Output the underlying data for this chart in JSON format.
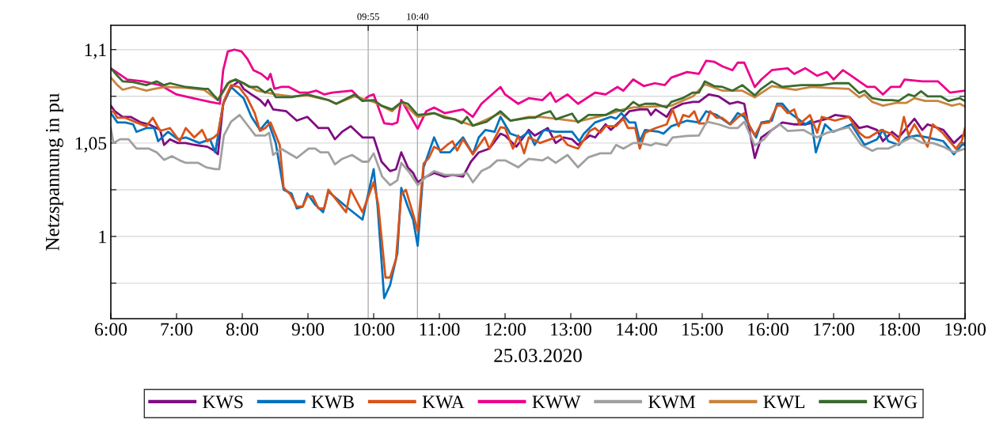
{
  "chart_data": {
    "type": "line",
    "xlabel": "25.03.2020",
    "ylabel": "Netzspannung in pu",
    "xlim": [
      6,
      19
    ],
    "ylim": [
      0.956,
      1.113
    ],
    "xticks": [
      {
        "value": 6,
        "label": "6:00"
      },
      {
        "value": 7,
        "label": "7:00"
      },
      {
        "value": 8,
        "label": "8:00"
      },
      {
        "value": 9,
        "label": "9:00"
      },
      {
        "value": 10,
        "label": "10:00"
      },
      {
        "value": 11,
        "label": "11:00"
      },
      {
        "value": 12,
        "label": "12:00"
      },
      {
        "value": 13,
        "label": "13:00"
      },
      {
        "value": 14,
        "label": "14:00"
      },
      {
        "value": 15,
        "label": "15:00"
      },
      {
        "value": 16,
        "label": "16:00"
      },
      {
        "value": 17,
        "label": "17:00"
      },
      {
        "value": 18,
        "label": "18:00"
      },
      {
        "value": 19,
        "label": "19:00"
      }
    ],
    "yticks": [
      {
        "value": 0.975,
        "label": null
      },
      {
        "value": 1,
        "label": "1"
      },
      {
        "value": 1.025,
        "label": null
      },
      {
        "value": 1.05,
        "label": "1,05"
      },
      {
        "value": 1.075,
        "label": null
      },
      {
        "value": 1.1,
        "label": "1,1"
      }
    ],
    "grid": "y",
    "legend": "bottom",
    "line_style": "solid",
    "marker": "none",
    "x2lim": [
      6,
      19
    ],
    "x2ticks": [
      {
        "value": 9.9167,
        "label": "09:55"
      },
      {
        "value": 10.6667,
        "label": "10:40"
      }
    ],
    "ref_lines": [
      {
        "axis": "x",
        "value": 9.9167,
        "color": "#b0b0b0"
      },
      {
        "axis": "x",
        "value": 10.6667,
        "color": "#b0b0b0"
      }
    ],
    "series": [
      {
        "name": "KWS",
        "color": "#7e0d81",
        "x": [
          6.0,
          6.06,
          6.18,
          6.3,
          6.46,
          6.58,
          6.75,
          6.81,
          6.9,
          7.02,
          7.14,
          7.27,
          7.47,
          7.57,
          7.63,
          7.71,
          7.83,
          7.95,
          8.02,
          8.14,
          8.27,
          8.35,
          8.39,
          8.47,
          8.67,
          8.83,
          8.99,
          9.16,
          9.31,
          9.41,
          9.52,
          9.65,
          9.83,
          10.0,
          10.12,
          10.25,
          10.34,
          10.42,
          10.52,
          10.6,
          10.67,
          10.8,
          10.92,
          11.08,
          11.2,
          11.36,
          11.48,
          11.6,
          11.76,
          11.93,
          12.0,
          12.17,
          12.36,
          12.45,
          12.65,
          12.77,
          12.89,
          13.02,
          13.11,
          13.29,
          13.37,
          13.53,
          13.61,
          13.73,
          13.89,
          14.05,
          14.17,
          14.22,
          14.29,
          14.46,
          14.53,
          14.7,
          14.86,
          14.95,
          15.1,
          15.25,
          15.42,
          15.54,
          15.64,
          15.8,
          15.9,
          16.06,
          16.22,
          16.39,
          16.58,
          16.9,
          17.02,
          17.24,
          17.39,
          17.51,
          17.66,
          17.75,
          17.89,
          17.99,
          18.23,
          18.35,
          18.43,
          18.67,
          18.83,
          18.95,
          19.0
        ],
        "values": [
          1.07,
          1.067,
          1.064,
          1.064,
          1.061,
          1.06,
          1.057,
          1.049,
          1.052,
          1.05,
          1.05,
          1.049,
          1.048,
          1.046,
          1.044,
          1.071,
          1.08,
          1.083,
          1.079,
          1.076,
          1.073,
          1.07,
          1.073,
          1.068,
          1.067,
          1.062,
          1.064,
          1.058,
          1.058,
          1.052,
          1.056,
          1.059,
          1.053,
          1.053,
          1.04,
          1.035,
          1.036,
          1.045,
          1.037,
          1.034,
          1.029,
          1.032,
          1.034,
          1.032,
          1.033,
          1.032,
          1.04,
          1.045,
          1.047,
          1.055,
          1.054,
          1.048,
          1.057,
          1.054,
          1.058,
          1.05,
          1.053,
          1.052,
          1.049,
          1.054,
          1.053,
          1.06,
          1.057,
          1.061,
          1.067,
          1.068,
          1.068,
          1.065,
          1.068,
          1.064,
          1.068,
          1.071,
          1.072,
          1.072,
          1.076,
          1.075,
          1.071,
          1.072,
          1.071,
          1.042,
          1.053,
          1.057,
          1.061,
          1.06,
          1.06,
          1.063,
          1.065,
          1.064,
          1.058,
          1.059,
          1.057,
          1.051,
          1.056,
          1.053,
          1.063,
          1.057,
          1.06,
          1.057,
          1.05,
          1.054,
          1.054
        ]
      },
      {
        "name": "KWB",
        "color": "#0072bd",
        "x": [
          6.0,
          6.1,
          6.22,
          6.34,
          6.39,
          6.54,
          6.66,
          6.72,
          6.87,
          7.02,
          7.14,
          7.35,
          7.51,
          7.59,
          7.71,
          7.83,
          8.02,
          8.14,
          8.27,
          8.39,
          8.51,
          8.63,
          8.75,
          8.83,
          8.92,
          8.99,
          9.11,
          9.23,
          9.31,
          9.58,
          9.83,
          10.0,
          10.06,
          10.16,
          10.25,
          10.36,
          10.42,
          10.52,
          10.6,
          10.67,
          10.76,
          10.92,
          11.02,
          11.16,
          11.36,
          11.51,
          11.6,
          11.7,
          11.84,
          11.93,
          12.08,
          12.24,
          12.36,
          12.45,
          12.57,
          12.6,
          12.77,
          13.02,
          13.13,
          13.2,
          13.37,
          13.61,
          13.69,
          13.77,
          13.89,
          13.98,
          14.05,
          14.13,
          14.34,
          14.41,
          14.53,
          14.77,
          14.95,
          15.06,
          15.22,
          15.42,
          15.54,
          15.64,
          15.82,
          15.9,
          16.06,
          16.14,
          16.22,
          16.34,
          16.57,
          16.66,
          16.73,
          16.87,
          16.99,
          17.14,
          17.27,
          17.47,
          17.66,
          17.75,
          17.83,
          17.99,
          18.11,
          18.27,
          18.43,
          18.67,
          18.83,
          18.95,
          19.0
        ],
        "values": [
          1.066,
          1.061,
          1.061,
          1.06,
          1.056,
          1.058,
          1.058,
          1.051,
          1.056,
          1.052,
          1.053,
          1.05,
          1.052,
          1.045,
          1.071,
          1.08,
          1.074,
          1.064,
          1.057,
          1.062,
          1.05,
          1.025,
          1.023,
          1.015,
          1.016,
          1.023,
          1.017,
          1.013,
          1.024,
          1.016,
          1.009,
          1.036,
          1.016,
          0.967,
          0.974,
          0.991,
          1.026,
          1.016,
          1.009,
          0.995,
          1.037,
          1.053,
          1.045,
          1.045,
          1.053,
          1.044,
          1.053,
          1.057,
          1.056,
          1.064,
          1.055,
          1.053,
          1.056,
          1.049,
          1.056,
          1.057,
          1.056,
          1.056,
          1.051,
          1.055,
          1.061,
          1.064,
          1.063,
          1.066,
          1.061,
          1.061,
          1.051,
          1.057,
          1.056,
          1.055,
          1.059,
          1.062,
          1.061,
          1.067,
          1.065,
          1.06,
          1.066,
          1.064,
          1.053,
          1.061,
          1.062,
          1.071,
          1.071,
          1.066,
          1.06,
          1.062,
          1.045,
          1.06,
          1.056,
          1.058,
          1.06,
          1.049,
          1.052,
          1.057,
          1.051,
          1.049,
          1.053,
          1.054,
          1.053,
          1.051,
          1.044,
          1.049,
          1.049
        ]
      },
      {
        "name": "KWA",
        "color": "#d95319",
        "x": [
          6.0,
          6.04,
          6.1,
          6.22,
          6.39,
          6.54,
          6.64,
          6.75,
          6.9,
          7.05,
          7.14,
          7.27,
          7.39,
          7.47,
          7.57,
          7.63,
          7.72,
          7.83,
          7.95,
          8.07,
          8.19,
          8.27,
          8.35,
          8.43,
          8.57,
          8.63,
          8.73,
          8.83,
          8.92,
          8.99,
          9.07,
          9.16,
          9.25,
          9.31,
          9.58,
          9.65,
          9.83,
          10.0,
          10.07,
          10.18,
          10.25,
          10.34,
          10.42,
          10.49,
          10.6,
          10.67,
          10.76,
          10.84,
          10.92,
          11.02,
          11.12,
          11.2,
          11.27,
          11.36,
          11.51,
          11.69,
          11.76,
          11.93,
          12.0,
          12.12,
          12.2,
          12.29,
          12.36,
          12.48,
          12.53,
          12.69,
          12.84,
          12.95,
          13.11,
          13.29,
          13.37,
          13.45,
          13.53,
          13.69,
          13.8,
          13.87,
          13.98,
          14.05,
          14.13,
          14.29,
          14.46,
          14.55,
          14.64,
          14.71,
          14.8,
          14.88,
          14.95,
          15.06,
          15.12,
          15.22,
          15.3,
          15.43,
          15.55,
          15.64,
          15.73,
          15.8,
          15.9,
          16.02,
          16.14,
          16.2,
          16.3,
          16.4,
          16.48,
          16.64,
          16.75,
          16.82,
          17.02,
          17.23,
          17.39,
          17.48,
          17.54,
          17.72,
          17.87,
          17.99,
          18.07,
          18.14,
          18.23,
          18.43,
          18.51,
          18.67,
          18.86,
          18.95,
          19.0
        ],
        "values": [
          1.0665,
          1.067,
          1.0635,
          1.0635,
          1.061,
          1.059,
          1.0635,
          1.0565,
          1.058,
          1.051,
          1.058,
          1.053,
          1.057,
          1.051,
          1.053,
          1.055,
          1.0725,
          1.081,
          1.08,
          1.0745,
          1.066,
          1.0565,
          1.058,
          1.061,
          1.049,
          1.026,
          1.0225,
          1.016,
          1.016,
          1.0215,
          1.0215,
          1.015,
          1.015,
          1.025,
          1.013,
          1.025,
          1.013,
          1.029,
          1.017,
          0.978,
          0.978,
          0.988,
          1.0225,
          1.025,
          1.012,
          1.003,
          1.039,
          1.042,
          1.048,
          1.046,
          1.049,
          1.051,
          1.046,
          1.052,
          1.044,
          1.053,
          1.047,
          1.0585,
          1.058,
          1.047,
          1.054,
          1.0445,
          1.053,
          1.051,
          1.05,
          1.052,
          1.054,
          1.049,
          1.047,
          1.0565,
          1.058,
          1.0555,
          1.059,
          1.059,
          1.063,
          1.058,
          1.058,
          1.047,
          1.0555,
          1.058,
          1.06,
          1.068,
          1.059,
          1.065,
          1.064,
          1.067,
          1.0605,
          1.0605,
          1.067,
          1.0635,
          1.0635,
          1.06,
          1.064,
          1.066,
          1.0585,
          1.054,
          1.0605,
          1.061,
          1.07,
          1.07,
          1.066,
          1.068,
          1.06,
          1.065,
          1.0555,
          1.064,
          1.062,
          1.064,
          1.0555,
          1.053,
          1.053,
          1.057,
          1.055,
          1.051,
          1.064,
          1.054,
          1.06,
          1.048,
          1.06,
          1.055,
          1.047,
          1.051,
          1.058
        ]
      },
      {
        "name": "KWW",
        "color": "#ec008c",
        "x": [
          6.0,
          6.25,
          6.49,
          6.75,
          7.0,
          7.25,
          7.51,
          7.66,
          7.71,
          7.78,
          7.88,
          7.99,
          8.08,
          8.17,
          8.29,
          8.39,
          8.43,
          8.49,
          8.59,
          8.71,
          8.87,
          9.01,
          9.13,
          9.25,
          9.37,
          9.67,
          9.83,
          9.92,
          10.0,
          10.16,
          10.28,
          10.36,
          10.42,
          10.67,
          10.8,
          10.92,
          11.08,
          11.36,
          11.51,
          11.64,
          11.93,
          12.0,
          12.2,
          12.36,
          12.57,
          12.69,
          12.77,
          12.95,
          13.11,
          13.37,
          13.53,
          13.71,
          13.8,
          13.95,
          14.11,
          14.28,
          14.43,
          14.53,
          14.77,
          14.95,
          15.06,
          15.18,
          15.31,
          15.46,
          15.54,
          15.64,
          15.8,
          15.9,
          16.06,
          16.3,
          16.4,
          16.57,
          16.75,
          16.9,
          17.0,
          17.14,
          17.27,
          17.39,
          17.51,
          17.63,
          17.75,
          17.87,
          18.01,
          18.08,
          18.35,
          18.59,
          18.77,
          19.0
        ],
        "values": [
          1.09,
          1.084,
          1.083,
          1.081,
          1.076,
          1.074,
          1.072,
          1.071,
          1.089,
          1.099,
          1.1,
          1.099,
          1.095,
          1.089,
          1.087,
          1.084,
          1.087,
          1.079,
          1.08,
          1.08,
          1.077,
          1.077,
          1.078,
          1.076,
          1.077,
          1.078,
          1.0725,
          1.075,
          1.076,
          1.0606,
          1.06,
          1.061,
          1.073,
          1.0576,
          1.067,
          1.069,
          1.066,
          1.068,
          1.064,
          1.071,
          1.08,
          1.076,
          1.071,
          1.074,
          1.073,
          1.077,
          1.072,
          1.076,
          1.071,
          1.077,
          1.076,
          1.08,
          1.078,
          1.084,
          1.0805,
          1.082,
          1.081,
          1.085,
          1.088,
          1.087,
          1.094,
          1.0935,
          1.091,
          1.089,
          1.093,
          1.093,
          1.08,
          1.084,
          1.089,
          1.09,
          1.087,
          1.09,
          1.086,
          1.088,
          1.084,
          1.089,
          1.086,
          1.083,
          1.08,
          1.08,
          1.076,
          1.08,
          1.08,
          1.084,
          1.083,
          1.083,
          1.077,
          1.078
        ]
      },
      {
        "name": "KWM",
        "color": "#a0a0a0",
        "x": [
          6.0,
          6.04,
          6.14,
          6.27,
          6.39,
          6.58,
          6.7,
          6.81,
          6.93,
          7.05,
          7.14,
          7.33,
          7.45,
          7.59,
          7.65,
          7.72,
          7.83,
          7.96,
          8.07,
          8.2,
          8.35,
          8.41,
          8.47,
          8.59,
          8.83,
          9.01,
          9.11,
          9.19,
          9.31,
          9.41,
          9.52,
          9.67,
          9.83,
          9.92,
          10.0,
          10.13,
          10.25,
          10.36,
          10.42,
          10.55,
          10.67,
          10.8,
          10.92,
          11.08,
          11.33,
          11.42,
          11.51,
          11.64,
          11.76,
          11.88,
          12.0,
          12.2,
          12.36,
          12.57,
          12.65,
          12.77,
          12.95,
          13.11,
          13.27,
          13.45,
          13.61,
          13.69,
          13.8,
          13.95,
          14.05,
          14.22,
          14.29,
          14.46,
          14.55,
          14.77,
          14.95,
          15.07,
          15.25,
          15.42,
          15.54,
          15.64,
          15.8,
          15.94,
          16.06,
          16.18,
          16.3,
          16.54,
          16.75,
          16.9,
          17.23,
          17.42,
          17.59,
          17.66,
          17.83,
          17.95,
          18.19,
          18.35,
          18.51,
          18.67,
          18.83,
          19.0
        ],
        "values": [
          1.058,
          1.05,
          1.052,
          1.052,
          1.047,
          1.047,
          1.045,
          1.041,
          1.043,
          1.0407,
          1.0394,
          1.0394,
          1.037,
          1.036,
          1.036,
          1.054,
          1.0614,
          1.065,
          1.06,
          1.054,
          1.054,
          1.0555,
          1.0436,
          1.047,
          1.042,
          1.047,
          1.047,
          1.045,
          1.045,
          1.0386,
          1.0415,
          1.0436,
          1.04,
          1.04,
          1.0445,
          1.032,
          1.0275,
          1.03,
          1.0394,
          1.034,
          1.0275,
          1.032,
          1.035,
          1.033,
          1.033,
          1.034,
          1.029,
          1.035,
          1.037,
          1.0407,
          1.0407,
          1.037,
          1.0415,
          1.0407,
          1.0424,
          1.0394,
          1.0436,
          1.037,
          1.0424,
          1.0445,
          1.0445,
          1.049,
          1.047,
          1.05,
          1.05,
          1.0487,
          1.05,
          1.0487,
          1.053,
          1.0538,
          1.054,
          1.0614,
          1.06,
          1.058,
          1.058,
          1.0614,
          1.0487,
          1.052,
          1.057,
          1.06,
          1.0565,
          1.057,
          1.053,
          1.0555,
          1.0585,
          1.049,
          1.0458,
          1.047,
          1.047,
          1.049,
          1.053,
          1.05,
          1.05,
          1.048,
          1.045,
          1.047
        ]
      },
      {
        "name": "KWL",
        "color": "#c8843f",
        "x": [
          6.0,
          6.1,
          6.18,
          6.34,
          6.54,
          6.66,
          6.84,
          7.14,
          7.42,
          7.63,
          7.81,
          7.9,
          8.02,
          8.23,
          8.51,
          8.75,
          8.99,
          9.31,
          9.43,
          9.71,
          10.0,
          10.28,
          10.43,
          10.67,
          10.92,
          11.24,
          11.51,
          11.93,
          12.08,
          12.36,
          12.54,
          12.77,
          13.11,
          13.53,
          13.8,
          13.95,
          14.53,
          14.86,
          15.04,
          15.31,
          15.61,
          15.8,
          16.06,
          16.22,
          16.42,
          16.66,
          16.9,
          17.23,
          17.39,
          17.47,
          17.59,
          17.75,
          17.95,
          18.11,
          18.23,
          18.39,
          18.59,
          18.8,
          18.92,
          19.0
        ],
        "values": [
          1.085,
          1.081,
          1.0785,
          1.08,
          1.078,
          1.079,
          1.08,
          1.0795,
          1.0785,
          1.073,
          1.083,
          1.084,
          1.082,
          1.078,
          1.076,
          1.075,
          1.0755,
          1.073,
          1.071,
          1.075,
          1.072,
          1.067,
          1.072,
          1.064,
          1.066,
          1.0625,
          1.0593,
          1.066,
          1.062,
          1.064,
          1.064,
          1.063,
          1.0615,
          1.065,
          1.068,
          1.069,
          1.07,
          1.075,
          1.0815,
          1.078,
          1.078,
          1.0745,
          1.0805,
          1.0795,
          1.0785,
          1.08,
          1.0795,
          1.079,
          1.0745,
          1.076,
          1.072,
          1.07,
          1.0715,
          1.0715,
          1.074,
          1.0725,
          1.0725,
          1.07,
          1.071,
          1.0695
        ]
      },
      {
        "name": "KWG",
        "color": "#3a6b2e",
        "x": [
          6.0,
          6.1,
          6.18,
          6.34,
          6.54,
          6.7,
          6.81,
          6.9,
          7.14,
          7.42,
          7.48,
          7.63,
          7.78,
          7.9,
          8.02,
          8.11,
          8.23,
          8.35,
          8.43,
          8.51,
          8.75,
          8.99,
          9.31,
          9.43,
          9.71,
          9.83,
          10.0,
          10.12,
          10.28,
          10.43,
          10.52,
          10.67,
          10.92,
          11.08,
          11.24,
          11.34,
          11.42,
          11.51,
          11.72,
          11.93,
          12.08,
          12.36,
          12.45,
          12.57,
          12.69,
          12.77,
          13.02,
          13.11,
          13.27,
          13.53,
          13.69,
          13.8,
          13.95,
          14.04,
          14.13,
          14.29,
          14.46,
          14.53,
          14.7,
          14.86,
          14.95,
          15.04,
          15.18,
          15.31,
          15.46,
          15.61,
          15.8,
          15.9,
          16.06,
          16.22,
          16.51,
          16.66,
          16.82,
          17.0,
          17.23,
          17.39,
          17.47,
          17.59,
          17.75,
          17.89,
          17.99,
          18.14,
          18.23,
          18.33,
          18.43,
          18.63,
          18.75,
          18.92,
          19.0
        ],
        "values": [
          1.09,
          1.086,
          1.083,
          1.0826,
          1.081,
          1.083,
          1.081,
          1.082,
          1.08,
          1.079,
          1.079,
          1.073,
          1.082,
          1.084,
          1.082,
          1.08,
          1.08,
          1.077,
          1.079,
          1.0745,
          1.0745,
          1.076,
          1.073,
          1.071,
          1.076,
          1.0725,
          1.073,
          1.07,
          1.068,
          1.072,
          1.071,
          1.065,
          1.066,
          1.0635,
          1.0627,
          1.0606,
          1.064,
          1.0593,
          1.0614,
          1.067,
          1.062,
          1.0635,
          1.0635,
          1.0657,
          1.067,
          1.0627,
          1.0657,
          1.061,
          1.065,
          1.065,
          1.068,
          1.067,
          1.072,
          1.07,
          1.071,
          1.071,
          1.069,
          1.072,
          1.074,
          1.077,
          1.077,
          1.083,
          1.0805,
          1.08,
          1.078,
          1.081,
          1.0755,
          1.079,
          1.083,
          1.08,
          1.081,
          1.081,
          1.081,
          1.082,
          1.082,
          1.0767,
          1.078,
          1.074,
          1.073,
          1.073,
          1.0725,
          1.076,
          1.075,
          1.0777,
          1.075,
          1.075,
          1.0725,
          1.074,
          1.0725
        ]
      }
    ]
  }
}
